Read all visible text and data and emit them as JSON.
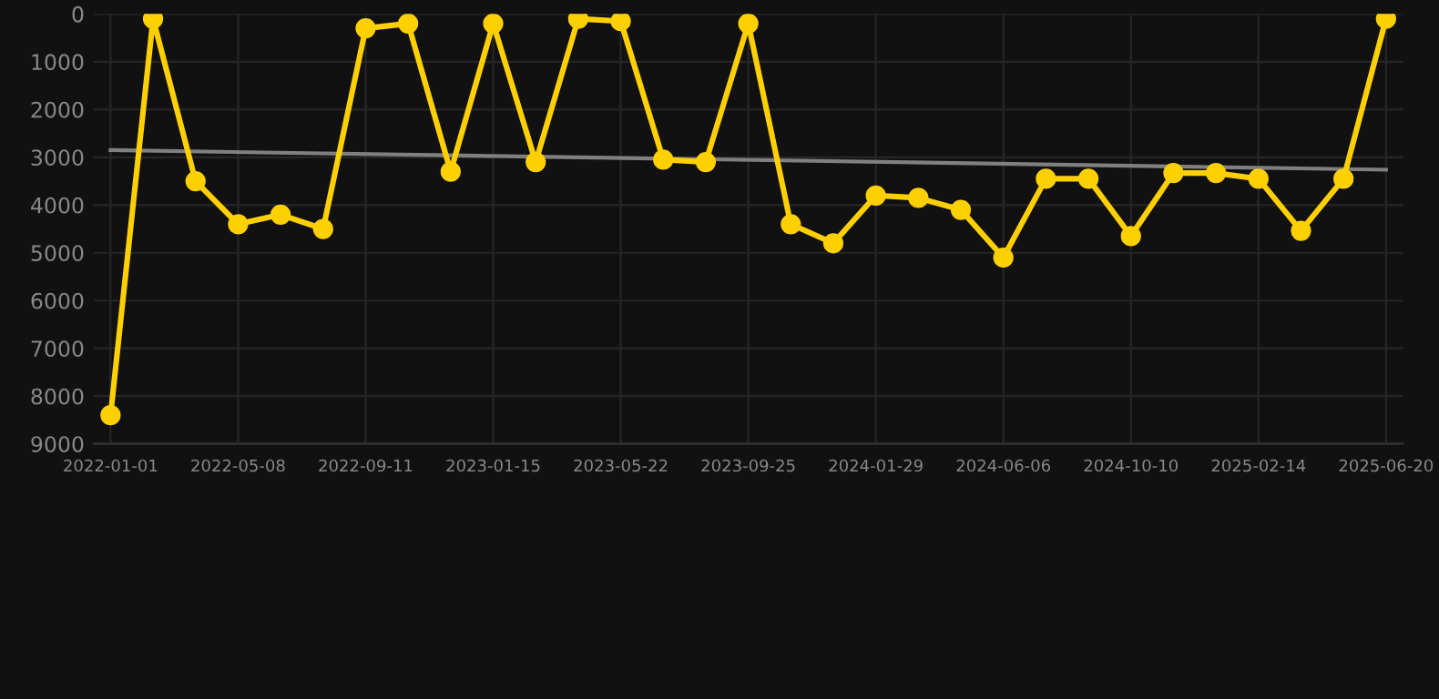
{
  "chart_data": {
    "type": "line",
    "categories": [
      "2022-01-01",
      null,
      null,
      "2022-05-08",
      null,
      null,
      "2022-09-11",
      null,
      null,
      "2023-01-15",
      null,
      null,
      "2023-05-22",
      null,
      null,
      "2023-09-25",
      null,
      null,
      "2024-01-29",
      null,
      null,
      "2024-06-06",
      null,
      null,
      "2024-10-10",
      null,
      null,
      "2025-02-14",
      null,
      null,
      "2025-06-20"
    ],
    "series": [
      {
        "color": "#ffd000",
        "marker": "circle",
        "values": [
          8400,
          100,
          3500,
          4400,
          4200,
          4500,
          300,
          200,
          3300,
          200,
          3100,
          100,
          150,
          3050,
          3100,
          200,
          4400,
          4800,
          3800,
          3850,
          4100,
          5100,
          3450,
          3450,
          4650,
          3330,
          3330,
          3450,
          4540,
          3450,
          100
        ]
      },
      {
        "type": "line",
        "color": "#808080",
        "marker": "none",
        "values": [
          2850,
          null,
          null,
          null,
          null,
          null,
          null,
          null,
          null,
          null,
          null,
          null,
          null,
          null,
          null,
          null,
          null,
          null,
          null,
          null,
          null,
          null,
          null,
          null,
          null,
          null,
          null,
          null,
          null,
          null,
          3260
        ]
      }
    ],
    "ylim": [
      9000,
      0
    ],
    "yticks": [
      0,
      1000,
      2000,
      3000,
      4000,
      5000,
      6000,
      7000,
      8000,
      9000
    ],
    "grid": true
  }
}
